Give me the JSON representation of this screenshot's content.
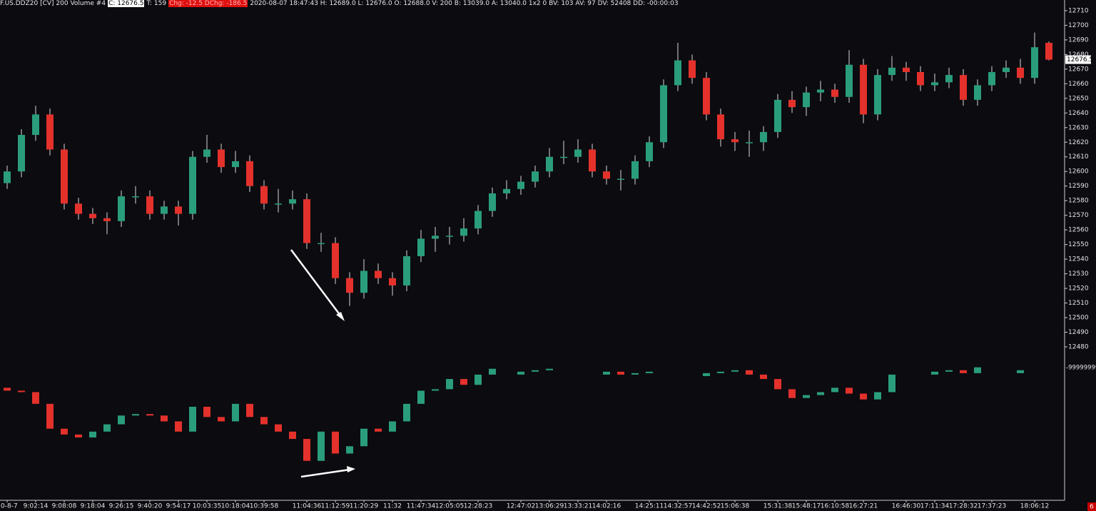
{
  "chart_data": {
    "type": "candlestick",
    "title": "F.US.DDZ20 [CV] 200 Volume  #4",
    "annotations": [
      "C: 12676.5",
      "T: 159",
      "Chg: -12.5 DChg: -186.5",
      "2020-08-07 18:47:43 H: 12689.0 L: 12676.0 O: 12688.0 V: 200 B: 13039.0 A: 13040.0 1x2 0 BV: 103 AV: 97 DV: 52408 DD: -00:00:03",
      "-99999999",
      "6"
    ],
    "last_price": 12676.5,
    "categories": [
      "0-8-7",
      null,
      "9:02:14",
      null,
      "9:08:08",
      null,
      "9:18:04",
      null,
      "9:26:15",
      null,
      "9:40:20",
      null,
      "9:54:17",
      null,
      "10:03:35",
      null,
      "10:18:04",
      null,
      "10:39:58",
      null,
      null,
      "11:04:36",
      null,
      "11:12:59",
      null,
      "11:20:29",
      null,
      "11:32",
      null,
      "11:47:34",
      null,
      "12:05:05",
      null,
      "12:28:23",
      null,
      null,
      "12:47:02",
      null,
      "13:06:29",
      null,
      "13:33:21",
      null,
      "14:02:16",
      null,
      null,
      "14:25:11",
      null,
      "14:32:57",
      null,
      "14:42:52",
      null,
      "15:06:38",
      null,
      null,
      "15:31:38",
      null,
      "15:48:17",
      null,
      "16:10:58",
      null,
      "16:27:21",
      null,
      null,
      "16:46:30",
      null,
      "17:11:34",
      null,
      "17:28:32",
      null,
      "17:37:23",
      null,
      null,
      "18:06:12",
      null
    ],
    "ylim": [
      12375.5,
      12717.3
    ],
    "yticks": [
      12710,
      12700,
      12690,
      12680,
      12670,
      12660,
      12650,
      12640,
      12630,
      12620,
      12610,
      12600,
      12590,
      12580,
      12570,
      12560,
      12550,
      12540,
      12530,
      12520,
      12510,
      12500,
      12490,
      12480
    ],
    "color_up": "#2a9d7c",
    "color_down": "#e4312b",
    "series": [
      {
        "open": [
          12592,
          12600,
          12625,
          12639,
          12615,
          12578,
          12571,
          12568,
          12566,
          12583,
          12583,
          12571,
          12576,
          12571,
          12610,
          12615,
          12603,
          12607,
          12590,
          12578,
          12578,
          12581,
          12551,
          12551,
          12527,
          12517,
          12532,
          12527,
          12522,
          12542,
          12554,
          12556,
          12556,
          12561,
          12573,
          12585,
          12588,
          12593,
          12600,
          12610,
          12610,
          12615,
          12600,
          12595,
          12595,
          12607,
          12620,
          12659,
          12676,
          12664,
          12639,
          12622,
          12620,
          12620,
          12627,
          12649,
          12644,
          12654,
          12656,
          12651,
          12673,
          12639,
          12666,
          12671,
          12668,
          12659,
          12661,
          12666,
          12649,
          12659,
          12668,
          12671,
          12664,
          12688
        ],
        "high": [
          12604,
          12629,
          12645,
          12643,
          12619,
          12582,
          12575,
          12572,
          12587,
          12590,
          12587,
          12580,
          12580,
          12614,
          12625,
          12619,
          12614,
          12611,
          12594,
          12588,
          12587,
          12585,
          12558,
          12555,
          12531,
          12540,
          12537,
          12531,
          12546,
          12560,
          12562,
          12562,
          12568,
          12577,
          12589,
          12594,
          12597,
          12604,
          12616,
          12621,
          12622,
          12619,
          12604,
          12601,
          12611,
          12624,
          12663,
          12688,
          12680,
          12668,
          12643,
          12627,
          12628,
          12631,
          12653,
          12655,
          12658,
          12662,
          12660,
          12683,
          12677,
          12670,
          12679,
          12675,
          12672,
          12667,
          12671,
          12670,
          12663,
          12672,
          12676,
          12677,
          12695,
          12689
        ],
        "low": [
          12588,
          12596,
          12621,
          12611,
          12574,
          12567,
          12564,
          12557,
          12562,
          12578,
          12567,
          12567,
          12563,
          12567,
          12606,
          12599,
          12599,
          12586,
          12574,
          12572,
          12574,
          12547,
          12545,
          12523,
          12508,
          12513,
          12523,
          12515,
          12518,
          12538,
          12545,
          12550,
          12552,
          12557,
          12569,
          12581,
          12584,
          12589,
          12596,
          12605,
          12606,
          12596,
          12591,
          12587,
          12591,
          12603,
          12616,
          12655,
          12660,
          12635,
          12617,
          12614,
          12610,
          12614,
          12623,
          12640,
          12638,
          12648,
          12647,
          12647,
          12633,
          12635,
          12662,
          12662,
          12655,
          12655,
          12657,
          12645,
          12645,
          12655,
          12664,
          12660,
          12660,
          12676
        ],
        "close": [
          12600,
          12625,
          12639,
          12615,
          12578,
          12571,
          12568,
          12566,
          12583,
          12583,
          12571,
          12576,
          12571,
          12610,
          12615,
          12603,
          12607,
          12590,
          12578,
          12578,
          12581,
          12551,
          12551,
          12527,
          12517,
          12532,
          12527,
          12522,
          12542,
          12554,
          12556,
          12556,
          12561,
          12573,
          12585,
          12588,
          12593,
          12600,
          12610,
          12610,
          12615,
          12600,
          12595,
          12595,
          12607,
          12620,
          12659,
          12676,
          12664,
          12639,
          12622,
          12620,
          12620,
          12627,
          12649,
          12644,
          12654,
          12656,
          12651,
          12673,
          12639,
          12666,
          12671,
          12668,
          12659,
          12661,
          12666,
          12649,
          12659,
          12668,
          12671,
          12664,
          12685,
          12676.5
        ]
      },
      {
        "open": [
          12452,
          12450,
          12449,
          12441,
          12424,
          12420,
          12418,
          12422,
          12427,
          12433,
          12434,
          12433,
          12429,
          12422,
          12439,
          12432,
          12429,
          12441,
          12432,
          12427,
          12422,
          12417,
          12402,
          12422,
          12407,
          12412,
          12424,
          12422,
          12429,
          12441,
          12450,
          12451,
          12458,
          12454,
          12461,
          null,
          12461,
          12463,
          12464,
          null,
          null,
          null,
          12461,
          12463,
          12461,
          12462,
          null,
          null,
          null,
          12460,
          12462,
          12463,
          12464,
          12461,
          12458,
          12451,
          12445,
          12447,
          12449,
          12452,
          12448,
          12444,
          12449,
          null,
          null,
          12461,
          12463,
          12464,
          12462,
          null,
          null,
          12462,
          null,
          null
        ],
        "close": [
          12450,
          12449,
          12441,
          12424,
          12420,
          12418,
          12422,
          12427,
          12433,
          12434,
          12433,
          12429,
          12422,
          12439,
          12432,
          12429,
          12441,
          12432,
          12427,
          12422,
          12417,
          12402,
          12422,
          12407,
          12412,
          12424,
          12422,
          12429,
          12441,
          12450,
          12451,
          12458,
          12454,
          12461,
          12465,
          null,
          12463,
          12464,
          12465,
          null,
          null,
          null,
          12463,
          12461,
          12462,
          12463,
          null,
          null,
          null,
          12462,
          12463,
          12464,
          12461,
          12458,
          12451,
          12445,
          12447,
          12449,
          12452,
          12448,
          12444,
          12449,
          12461,
          null,
          null,
          12463,
          12464,
          12462,
          12466,
          null,
          null,
          12464,
          null,
          null
        ]
      }
    ]
  }
}
